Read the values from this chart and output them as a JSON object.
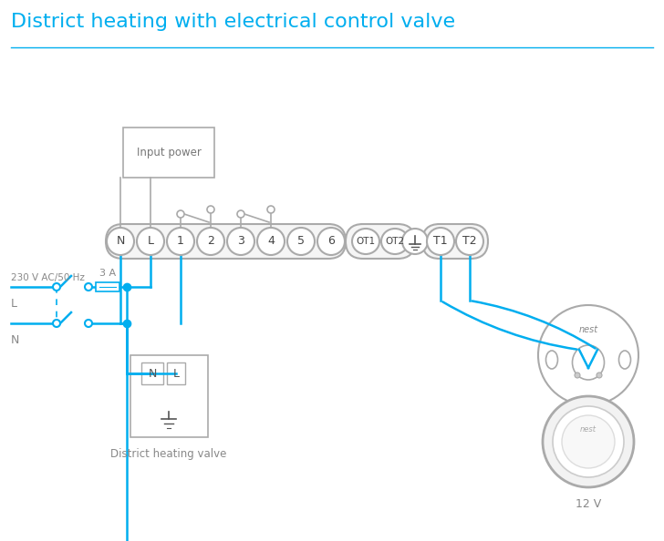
{
  "title": "District heating with electrical control valve",
  "title_color": "#00AEEF",
  "title_fontsize": 16,
  "line_color": "#00AEEF",
  "border_color": "#aaaaaa",
  "text_color": "#7a9baa",
  "bg_color": "#ffffff",
  "terminal_labels": [
    "N",
    "L",
    "1",
    "2",
    "3",
    "4",
    "5",
    "6"
  ],
  "terminal_labels2": [
    "OT1",
    "OT2"
  ],
  "terminal_labels3": [
    "T1",
    "T2"
  ],
  "fuse_label": "3 A",
  "ac_label": "230 V AC/50 Hz",
  "L_label": "L",
  "N_label": "N",
  "valve_label": "District heating valve",
  "nest_label": "12 V",
  "input_power_label": "Input power"
}
